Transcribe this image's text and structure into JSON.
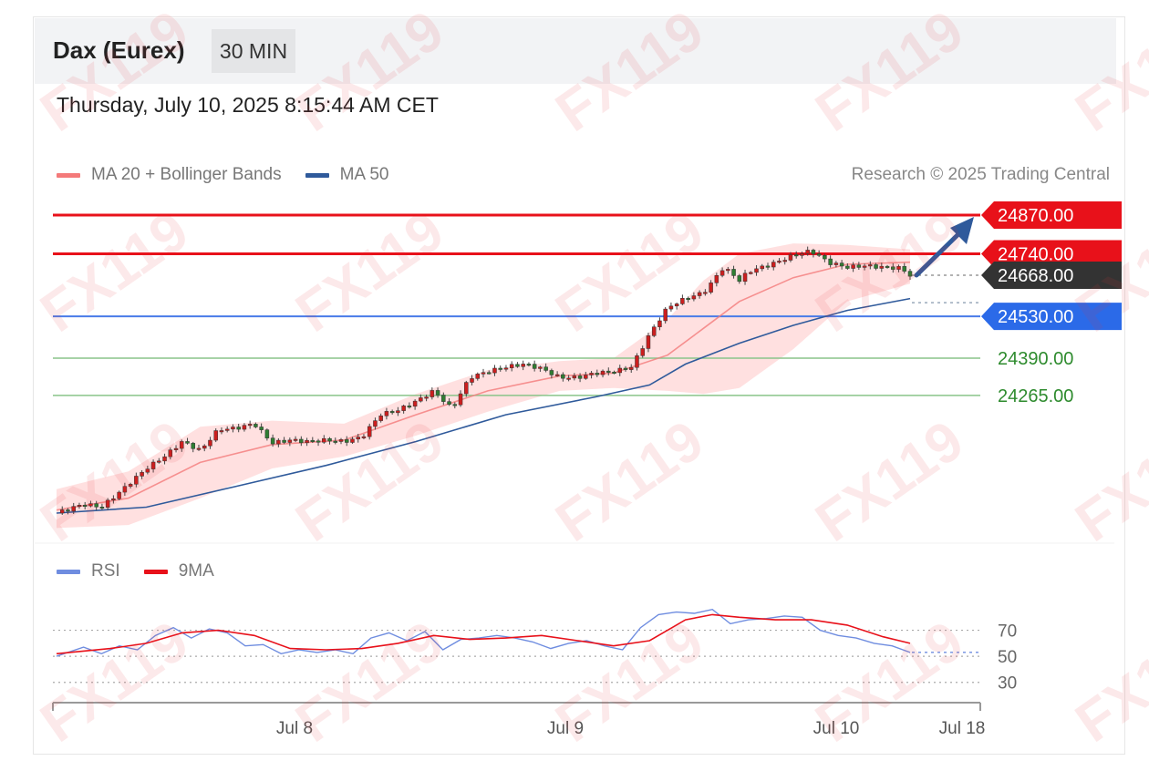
{
  "header": {
    "title": "Dax (Eurex)",
    "timeframe": "30 MIN",
    "timestamp": "Thursday, July 10, 2025 8:15:44 AM CET",
    "copyright": "Research © 2025 Trading Central"
  },
  "legend_main": [
    {
      "label": "MA 20 + Bollinger Bands",
      "color": "#f47a7a"
    },
    {
      "label": "MA 50",
      "color": "#2f5a9b"
    }
  ],
  "legend_rsi": [
    {
      "label": "RSI",
      "color": "#6f8de0"
    },
    {
      "label": "9MA",
      "color": "#e8111a"
    }
  ],
  "watermark": "FX119",
  "colors": {
    "resistance": "#e8111a",
    "support": "#2b6ae8",
    "target_green": "#2e8b2e",
    "last_price": "#333333",
    "candle_up": "#cc1e1e",
    "candle_down": "#2e7d32",
    "bollinger_fill": "#ffd6d6",
    "arrow": "#2f5a9b"
  },
  "chart_data": {
    "type": "candlestick",
    "x_ticks": [
      "Jul 8",
      "Jul 9",
      "Jul 10",
      "Jul 18"
    ],
    "ylim": [
      23820,
      24900
    ],
    "levels": [
      {
        "value": 24870,
        "label": "24870.00",
        "kind": "resistance"
      },
      {
        "value": 24740,
        "label": "24740.00",
        "kind": "resistance"
      },
      {
        "value": 24668,
        "label": "24668.00",
        "kind": "last"
      },
      {
        "value": 24530,
        "label": "24530.00",
        "kind": "support"
      },
      {
        "value": 24390,
        "label": "24390.00",
        "kind": "target"
      },
      {
        "value": 24265,
        "label": "24265.00",
        "kind": "target"
      }
    ],
    "close_path": [
      [
        0,
        23870
      ],
      [
        3,
        23900
      ],
      [
        5,
        23890
      ],
      [
        7,
        23940
      ],
      [
        10,
        24020
      ],
      [
        12,
        24060
      ],
      [
        14,
        24110
      ],
      [
        16,
        24080
      ],
      [
        18,
        24150
      ],
      [
        20,
        24155
      ],
      [
        22,
        24170
      ],
      [
        24,
        24105
      ],
      [
        26,
        24115
      ],
      [
        28,
        24110
      ],
      [
        30,
        24115
      ],
      [
        32,
        24110
      ],
      [
        34,
        24125
      ],
      [
        36,
        24200
      ],
      [
        38,
        24215
      ],
      [
        40,
        24245
      ],
      [
        42,
        24280
      ],
      [
        44,
        24220
      ],
      [
        46,
        24325
      ],
      [
        48,
        24345
      ],
      [
        50,
        24360
      ],
      [
        52,
        24370
      ],
      [
        54,
        24355
      ],
      [
        56,
        24325
      ],
      [
        58,
        24325
      ],
      [
        60,
        24340
      ],
      [
        62,
        24345
      ],
      [
        64,
        24360
      ],
      [
        66,
        24470
      ],
      [
        68,
        24560
      ],
      [
        70,
        24590
      ],
      [
        72,
        24610
      ],
      [
        73,
        24645
      ],
      [
        74,
        24690
      ],
      [
        75,
        24680
      ],
      [
        76,
        24650
      ],
      [
        77,
        24680
      ],
      [
        80,
        24710
      ],
      [
        82,
        24735
      ],
      [
        84,
        24750
      ],
      [
        86,
        24710
      ],
      [
        88,
        24695
      ],
      [
        90,
        24700
      ],
      [
        92,
        24695
      ],
      [
        94,
        24692
      ],
      [
        95,
        24668
      ]
    ],
    "ma50": [
      [
        0,
        23870
      ],
      [
        10,
        23890
      ],
      [
        20,
        23960
      ],
      [
        30,
        24030
      ],
      [
        40,
        24110
      ],
      [
        50,
        24200
      ],
      [
        60,
        24260
      ],
      [
        66,
        24300
      ],
      [
        70,
        24370
      ],
      [
        76,
        24440
      ],
      [
        82,
        24500
      ],
      [
        88,
        24550
      ],
      [
        95,
        24590
      ]
    ],
    "ma20": [
      [
        0,
        23880
      ],
      [
        8,
        23920
      ],
      [
        16,
        24040
      ],
      [
        24,
        24100
      ],
      [
        32,
        24115
      ],
      [
        40,
        24200
      ],
      [
        48,
        24280
      ],
      [
        56,
        24330
      ],
      [
        62,
        24340
      ],
      [
        68,
        24400
      ],
      [
        72,
        24490
      ],
      [
        76,
        24580
      ],
      [
        82,
        24660
      ],
      [
        88,
        24705
      ],
      [
        95,
        24712
      ]
    ],
    "bollinger_upper": [
      [
        0,
        23950
      ],
      [
        8,
        24010
      ],
      [
        16,
        24160
      ],
      [
        24,
        24180
      ],
      [
        32,
        24170
      ],
      [
        40,
        24270
      ],
      [
        48,
        24350
      ],
      [
        56,
        24380
      ],
      [
        62,
        24390
      ],
      [
        68,
        24520
      ],
      [
        72,
        24650
      ],
      [
        76,
        24740
      ],
      [
        82,
        24775
      ],
      [
        88,
        24770
      ],
      [
        95,
        24755
      ]
    ],
    "bollinger_lower": [
      [
        0,
        23820
      ],
      [
        8,
        23830
      ],
      [
        16,
        23920
      ],
      [
        24,
        24020
      ],
      [
        32,
        24060
      ],
      [
        40,
        24130
      ],
      [
        48,
        24210
      ],
      [
        56,
        24280
      ],
      [
        62,
        24290
      ],
      [
        68,
        24280
      ],
      [
        72,
        24270
      ],
      [
        76,
        24290
      ],
      [
        82,
        24420
      ],
      [
        88,
        24580
      ],
      [
        95,
        24640
      ]
    ],
    "rsi": {
      "ylim": [
        20,
        90
      ],
      "ticks": [
        70,
        50,
        30
      ],
      "values": [
        [
          0,
          50
        ],
        [
          3,
          57
        ],
        [
          5,
          52
        ],
        [
          7,
          58
        ],
        [
          9,
          55
        ],
        [
          11,
          66
        ],
        [
          13,
          72
        ],
        [
          15,
          64
        ],
        [
          17,
          71
        ],
        [
          19,
          68
        ],
        [
          21,
          58
        ],
        [
          23,
          59
        ],
        [
          25,
          52
        ],
        [
          27,
          55
        ],
        [
          29,
          53
        ],
        [
          31,
          55
        ],
        [
          33,
          52
        ],
        [
          35,
          64
        ],
        [
          37,
          68
        ],
        [
          39,
          62
        ],
        [
          41,
          69
        ],
        [
          43,
          55
        ],
        [
          45,
          63
        ],
        [
          47,
          64
        ],
        [
          49,
          66
        ],
        [
          51,
          64
        ],
        [
          53,
          61
        ],
        [
          55,
          56
        ],
        [
          57,
          60
        ],
        [
          59,
          62
        ],
        [
          61,
          58
        ],
        [
          63,
          55
        ],
        [
          65,
          72
        ],
        [
          67,
          82
        ],
        [
          69,
          84
        ],
        [
          71,
          83
        ],
        [
          73,
          86
        ],
        [
          75,
          75
        ],
        [
          77,
          78
        ],
        [
          79,
          79
        ],
        [
          81,
          81
        ],
        [
          83,
          80
        ],
        [
          85,
          70
        ],
        [
          87,
          66
        ],
        [
          89,
          64
        ],
        [
          91,
          60
        ],
        [
          93,
          58
        ],
        [
          95,
          53
        ]
      ],
      "ma9": [
        [
          0,
          52
        ],
        [
          6,
          56
        ],
        [
          10,
          60
        ],
        [
          14,
          68
        ],
        [
          18,
          70
        ],
        [
          22,
          66
        ],
        [
          26,
          56
        ],
        [
          30,
          55
        ],
        [
          34,
          56
        ],
        [
          38,
          60
        ],
        [
          42,
          66
        ],
        [
          46,
          63
        ],
        [
          50,
          64
        ],
        [
          54,
          66
        ],
        [
          58,
          62
        ],
        [
          62,
          58
        ],
        [
          66,
          62
        ],
        [
          68,
          70
        ],
        [
          70,
          78
        ],
        [
          73,
          82
        ],
        [
          76,
          80
        ],
        [
          80,
          78
        ],
        [
          84,
          78
        ],
        [
          88,
          74
        ],
        [
          92,
          65
        ],
        [
          95,
          60
        ]
      ]
    }
  }
}
